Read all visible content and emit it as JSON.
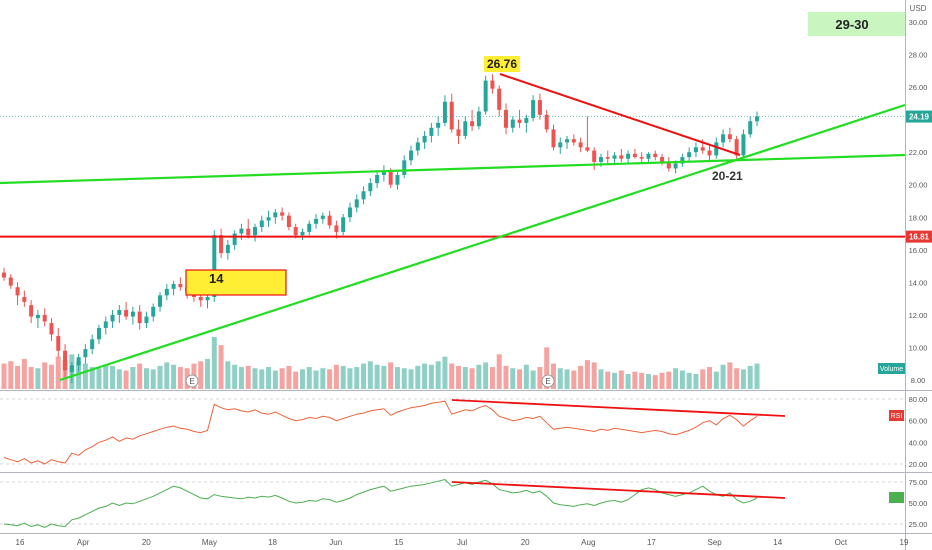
{
  "chart_data": {
    "type": "candlestick",
    "currency": "USD",
    "price_axis": {
      "ticks": [
        "30.00",
        "28.00",
        "26.00",
        "24.00",
        "22.00",
        "20.00",
        "18.00",
        "16.00",
        "14.00",
        "12.00",
        "10.00",
        "8.00"
      ],
      "min": 7.3,
      "max": 31.0
    },
    "time_axis": {
      "labels": [
        "16",
        "Apr",
        "20",
        "May",
        "18",
        "Jun",
        "15",
        "Jul",
        "20",
        "Aug",
        "17",
        "Sep",
        "14",
        "Oct",
        "19"
      ]
    },
    "last_price": {
      "value": 24.19,
      "label": "24.19"
    },
    "support_price": {
      "value": 16.81,
      "label": "16.81"
    },
    "annotations": {
      "peak": "26.76",
      "target": "29-30",
      "old_resistance": "14",
      "support_zone": "20-21",
      "earnings_marker": "E"
    },
    "candles": [
      [
        14.6,
        14.9,
        14.1,
        14.3
      ],
      [
        14.3,
        14.5,
        13.6,
        13.8
      ],
      [
        13.7,
        14.0,
        12.6,
        13.2
      ],
      [
        13.1,
        13.5,
        12.5,
        12.8
      ],
      [
        12.6,
        12.9,
        11.5,
        11.9
      ],
      [
        11.8,
        12.3,
        11.2,
        12.0
      ],
      [
        12.0,
        12.4,
        11.3,
        11.6
      ],
      [
        11.5,
        11.8,
        10.4,
        10.8
      ],
      [
        10.7,
        11.2,
        9.4,
        9.8
      ],
      [
        9.8,
        10.2,
        8.2,
        8.6
      ],
      [
        8.5,
        9.1,
        7.8,
        8.9
      ],
      [
        8.9,
        9.6,
        8.5,
        9.4
      ],
      [
        9.4,
        10.2,
        9.0,
        9.9
      ],
      [
        9.9,
        10.8,
        9.6,
        10.5
      ],
      [
        10.5,
        11.4,
        10.2,
        11.2
      ],
      [
        11.2,
        11.9,
        10.8,
        11.6
      ],
      [
        11.6,
        12.3,
        11.2,
        12.0
      ],
      [
        12.0,
        12.6,
        11.5,
        12.3
      ],
      [
        12.3,
        12.8,
        11.7,
        11.9
      ],
      [
        11.9,
        12.5,
        11.4,
        12.2
      ],
      [
        12.2,
        12.6,
        11.1,
        11.5
      ],
      [
        11.5,
        12.2,
        11.2,
        11.9
      ],
      [
        11.9,
        12.7,
        11.6,
        12.5
      ],
      [
        12.5,
        13.4,
        12.2,
        13.2
      ],
      [
        13.2,
        13.9,
        12.9,
        13.6
      ],
      [
        13.6,
        14.1,
        13.2,
        13.9
      ],
      [
        13.9,
        14.3,
        13.5,
        13.7
      ],
      [
        13.7,
        14.1,
        13.0,
        13.4
      ],
      [
        13.4,
        13.9,
        12.8,
        13.1
      ],
      [
        13.1,
        13.6,
        12.5,
        12.9
      ],
      [
        12.9,
        13.4,
        12.4,
        13.1
      ],
      [
        13.1,
        17.2,
        12.8,
        16.9
      ],
      [
        16.9,
        17.3,
        15.5,
        15.8
      ],
      [
        15.8,
        16.6,
        15.4,
        16.3
      ],
      [
        16.3,
        17.2,
        16.0,
        17.0
      ],
      [
        17.0,
        17.6,
        16.6,
        17.3
      ],
      [
        17.3,
        17.9,
        16.7,
        16.9
      ],
      [
        16.9,
        17.6,
        16.5,
        17.4
      ],
      [
        17.4,
        18.1,
        17.1,
        17.8
      ],
      [
        17.8,
        18.4,
        17.4,
        18.0
      ],
      [
        18.0,
        18.5,
        17.6,
        18.3
      ],
      [
        18.3,
        18.6,
        17.8,
        18.1
      ],
      [
        18.1,
        18.3,
        17.2,
        17.4
      ],
      [
        17.4,
        17.6,
        16.7,
        16.9
      ],
      [
        16.9,
        17.3,
        16.6,
        17.1
      ],
      [
        17.1,
        17.8,
        16.9,
        17.6
      ],
      [
        17.6,
        18.2,
        17.3,
        17.9
      ],
      [
        17.9,
        18.3,
        17.6,
        18.1
      ],
      [
        18.1,
        18.4,
        17.3,
        17.5
      ],
      [
        17.5,
        17.8,
        16.7,
        17.1
      ],
      [
        17.1,
        18.2,
        16.9,
        18.0
      ],
      [
        18.0,
        18.9,
        17.7,
        18.6
      ],
      [
        18.6,
        19.4,
        18.3,
        19.1
      ],
      [
        19.1,
        19.9,
        18.8,
        19.6
      ],
      [
        19.6,
        20.4,
        19.3,
        20.1
      ],
      [
        20.1,
        20.9,
        19.8,
        20.6
      ],
      [
        20.6,
        21.2,
        20.2,
        20.8
      ],
      [
        20.8,
        21.0,
        19.8,
        20.0
      ],
      [
        20.0,
        20.8,
        19.7,
        20.6
      ],
      [
        20.6,
        21.8,
        20.4,
        21.5
      ],
      [
        21.5,
        22.4,
        21.2,
        22.1
      ],
      [
        22.1,
        22.9,
        21.8,
        22.6
      ],
      [
        22.6,
        23.3,
        22.2,
        23.0
      ],
      [
        23.0,
        23.8,
        22.6,
        23.5
      ],
      [
        23.5,
        24.2,
        23.0,
        23.8
      ],
      [
        23.8,
        25.5,
        23.6,
        25.1
      ],
      [
        25.1,
        25.6,
        23.2,
        23.4
      ],
      [
        23.4,
        24.0,
        22.5,
        23.0
      ],
      [
        23.0,
        24.2,
        22.8,
        23.9
      ],
      [
        23.9,
        24.6,
        23.3,
        23.6
      ],
      [
        23.6,
        24.8,
        23.4,
        24.5
      ],
      [
        24.5,
        26.7,
        24.3,
        26.4
      ],
      [
        26.4,
        26.8,
        25.6,
        25.9
      ],
      [
        25.9,
        26.1,
        24.2,
        24.6
      ],
      [
        24.6,
        25.0,
        23.1,
        23.5
      ],
      [
        23.5,
        24.2,
        23.2,
        24.0
      ],
      [
        24.0,
        24.6,
        23.5,
        23.8
      ],
      [
        23.8,
        24.3,
        23.2,
        24.1
      ],
      [
        24.1,
        25.5,
        23.9,
        25.2
      ],
      [
        25.2,
        25.6,
        24.0,
        24.3
      ],
      [
        24.3,
        24.6,
        23.2,
        23.4
      ],
      [
        23.4,
        23.7,
        22.1,
        22.3
      ],
      [
        22.3,
        22.9,
        21.9,
        22.6
      ],
      [
        22.6,
        23.0,
        22.2,
        22.8
      ],
      [
        22.8,
        23.1,
        22.4,
        22.6
      ],
      [
        22.6,
        22.9,
        22.0,
        22.3
      ],
      [
        22.3,
        24.2,
        22.0,
        22.1
      ],
      [
        22.1,
        22.3,
        20.9,
        21.4
      ],
      [
        21.4,
        21.9,
        21.1,
        21.7
      ],
      [
        21.7,
        22.1,
        21.3,
        21.6
      ],
      [
        21.6,
        22.0,
        21.2,
        21.8
      ],
      [
        21.8,
        22.2,
        21.4,
        21.6
      ],
      [
        21.6,
        22.1,
        21.3,
        21.9
      ],
      [
        21.9,
        22.2,
        21.6,
        21.7
      ],
      [
        21.7,
        22.0,
        21.3,
        21.6
      ],
      [
        21.6,
        22.0,
        21.4,
        21.9
      ],
      [
        21.9,
        22.1,
        21.5,
        21.7
      ],
      [
        21.7,
        21.9,
        21.2,
        21.4
      ],
      [
        21.4,
        21.7,
        20.8,
        21.0
      ],
      [
        21.0,
        21.5,
        20.7,
        21.3
      ],
      [
        21.3,
        21.9,
        21.1,
        21.7
      ],
      [
        21.7,
        22.3,
        21.4,
        22.0
      ],
      [
        22.0,
        22.6,
        21.7,
        22.3
      ],
      [
        22.3,
        22.8,
        21.9,
        22.1
      ],
      [
        22.1,
        22.5,
        21.5,
        21.8
      ],
      [
        21.8,
        22.9,
        21.6,
        22.6
      ],
      [
        22.6,
        23.4,
        22.3,
        23.1
      ],
      [
        23.1,
        23.5,
        22.6,
        22.8
      ],
      [
        22.8,
        23.0,
        21.6,
        21.8
      ],
      [
        21.8,
        23.4,
        21.6,
        23.1
      ],
      [
        23.1,
        24.2,
        22.9,
        23.9
      ],
      [
        23.9,
        24.5,
        23.6,
        24.2
      ]
    ],
    "volume": [
      22,
      24,
      20,
      26,
      19,
      18,
      23,
      21,
      28,
      25,
      30,
      24,
      22,
      19,
      18,
      21,
      20,
      17,
      16,
      19,
      22,
      18,
      17,
      20,
      23,
      21,
      19,
      18,
      22,
      24,
      26,
      45,
      38,
      24,
      21,
      19,
      20,
      18,
      17,
      19,
      16,
      18,
      20,
      15,
      17,
      19,
      16,
      18,
      17,
      21,
      20,
      18,
      19,
      22,
      24,
      21,
      20,
      23,
      19,
      18,
      17,
      20,
      22,
      21,
      24,
      28,
      22,
      20,
      19,
      18,
      21,
      23,
      19,
      30,
      20,
      18,
      17,
      21,
      16,
      19,
      36,
      22,
      18,
      17,
      16,
      20,
      25,
      23,
      17,
      15,
      14,
      16,
      13,
      15,
      14,
      13,
      12,
      14,
      15,
      18,
      16,
      14,
      13,
      17,
      19,
      15,
      21,
      23,
      18,
      17,
      20,
      22
    ],
    "rsi": {
      "label": "RSI",
      "ticks": [
        "80.00",
        "60.00",
        "40.00",
        "20.00"
      ],
      "last_label": "RSI",
      "values": [
        26,
        24,
        22,
        25,
        21,
        23,
        20,
        24,
        22,
        21,
        30,
        28,
        33,
        36,
        40,
        42,
        45,
        41,
        44,
        43,
        46,
        48,
        50,
        52,
        54,
        55,
        53,
        52,
        50,
        49,
        51,
        75,
        72,
        70,
        71,
        69,
        68,
        70,
        67,
        66,
        68,
        65,
        62,
        60,
        61,
        63,
        62,
        64,
        63,
        60,
        62,
        64,
        66,
        67,
        69,
        70,
        71,
        65,
        68,
        70,
        72,
        73,
        74,
        76,
        77,
        78,
        66,
        68,
        70,
        69,
        72,
        74,
        70,
        64,
        62,
        60,
        61,
        63,
        62,
        64,
        58,
        52,
        53,
        54,
        53,
        52,
        51,
        50,
        52,
        51,
        53,
        52,
        51,
        50,
        49,
        50,
        51,
        50,
        48,
        47,
        49,
        51,
        54,
        58,
        60,
        56,
        62,
        65,
        61,
        55,
        60,
        64
      ]
    },
    "indicator2": {
      "ticks": [
        "75.00",
        "50.00",
        "25.00"
      ],
      "values": [
        25,
        24,
        23,
        26,
        22,
        24,
        21,
        25,
        23,
        22,
        30,
        32,
        36,
        40,
        44,
        46,
        50,
        47,
        50,
        49,
        52,
        55,
        58,
        62,
        66,
        70,
        68,
        64,
        60,
        56,
        55,
        60,
        58,
        57,
        56,
        55,
        57,
        56,
        58,
        57,
        59,
        56,
        52,
        50,
        51,
        53,
        52,
        55,
        54,
        51,
        53,
        56,
        60,
        63,
        66,
        68,
        70,
        64,
        66,
        68,
        70,
        71,
        72,
        74,
        76,
        78,
        70,
        72,
        74,
        72,
        75,
        77,
        73,
        66,
        64,
        62,
        63,
        65,
        62,
        64,
        58,
        50,
        48,
        47,
        46,
        48,
        49,
        47,
        50,
        52,
        53,
        51,
        54,
        60,
        66,
        68,
        66,
        62,
        60,
        58,
        60,
        62,
        66,
        70,
        64,
        60,
        58,
        62,
        54,
        50,
        52,
        56
      ]
    }
  }
}
